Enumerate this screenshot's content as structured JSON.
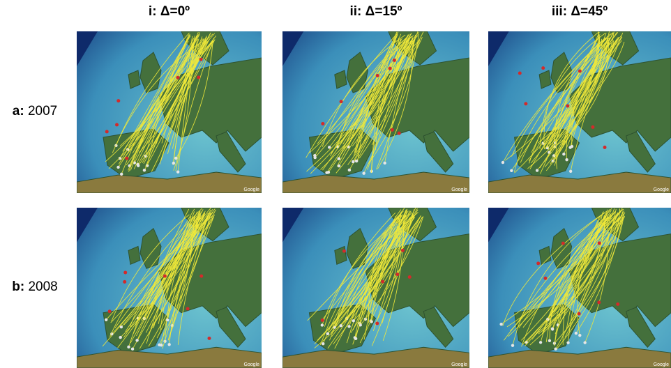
{
  "columns": [
    {
      "prefix": "i:",
      "text": "Δ=0º"
    },
    {
      "prefix": "ii:",
      "text": "Δ=15º"
    },
    {
      "prefix": "iii:",
      "text": "Δ=45º"
    }
  ],
  "rows": [
    {
      "prefix": "a:",
      "text": "2007"
    },
    {
      "prefix": "b:",
      "text": "2008"
    }
  ],
  "watermark": "Google"
}
